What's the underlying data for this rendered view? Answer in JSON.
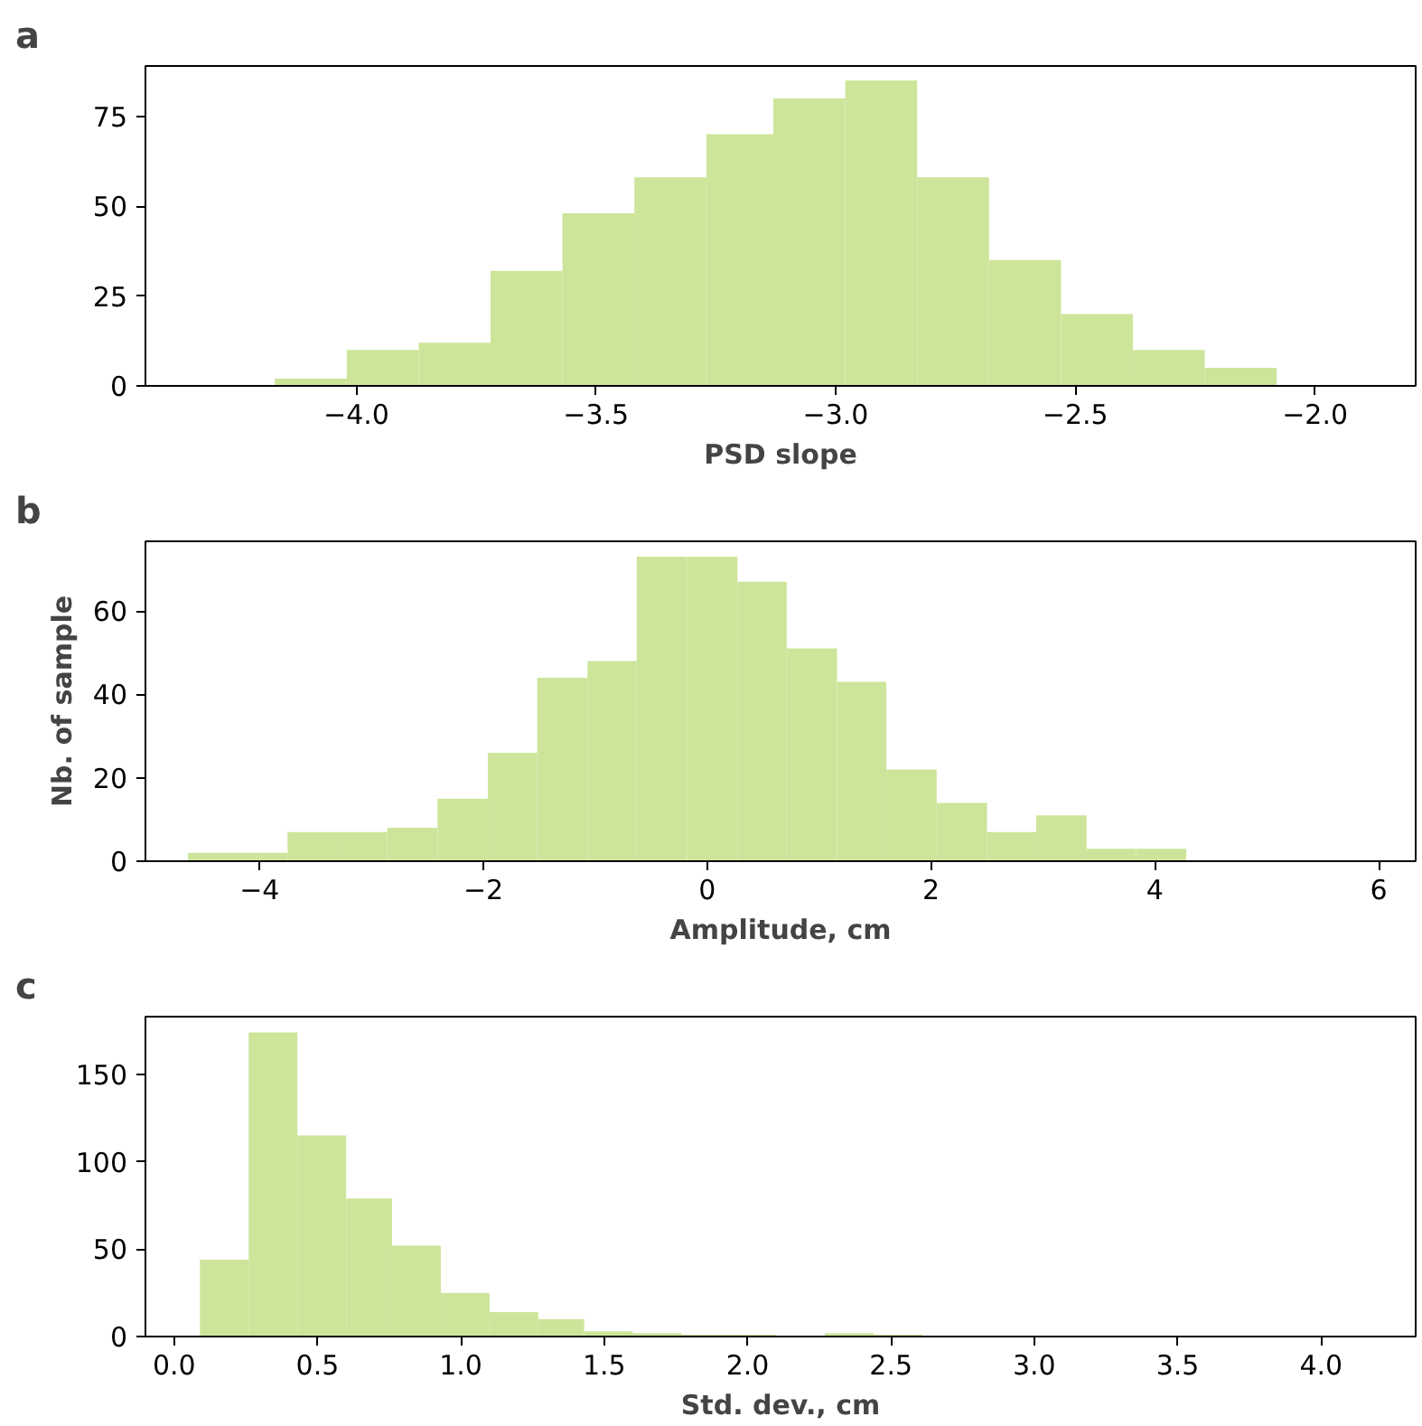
{
  "chart_data": [
    {
      "type": "histogram",
      "title": "a",
      "xlabel": "PSD slope",
      "color": "#cde59a",
      "grid": false,
      "bins": [
        -4.17,
        -4.02,
        -3.87,
        -3.72,
        -3.57,
        -3.42,
        -3.27,
        -3.13,
        -2.98,
        -2.83,
        -2.68,
        -2.53,
        -2.38,
        -2.23,
        -2.08
      ],
      "values": [
        2,
        10,
        12,
        32,
        48,
        58,
        70,
        80,
        85,
        58,
        35,
        20,
        10,
        5
      ],
      "xlim": [
        -4.44,
        -1.79
      ],
      "ylim": [
        0,
        89
      ],
      "xticks": [
        {
          "value": -4.0,
          "label": "−4.0"
        },
        {
          "value": -3.5,
          "label": "−3.5"
        },
        {
          "value": -3.0,
          "label": "−3.0"
        },
        {
          "value": -2.5,
          "label": "−2.5"
        },
        {
          "value": -2.0,
          "label": "−2.0"
        }
      ],
      "yticks": [
        0,
        25,
        50,
        75
      ]
    },
    {
      "type": "histogram",
      "title": "b",
      "xlabel": "Amplitude, cm",
      "ylabel": "Nb. of sample",
      "color": "#cde59a",
      "grid": false,
      "bins": [
        -4.64,
        -4.19,
        -3.75,
        -3.3,
        -2.86,
        -2.41,
        -1.96,
        -1.52,
        -1.07,
        -0.63,
        -0.18,
        0.27,
        0.71,
        1.16,
        1.6,
        2.05,
        2.5,
        2.94,
        3.39,
        3.83,
        4.28
      ],
      "values": [
        2,
        2,
        7,
        7,
        8,
        15,
        26,
        44,
        48,
        73,
        73,
        67,
        51,
        43,
        22,
        14,
        7,
        11,
        3,
        3
      ],
      "xlim": [
        -5.02,
        6.33
      ],
      "ylim": [
        0,
        76.7
      ],
      "xticks": [
        {
          "value": -4,
          "label": "−4"
        },
        {
          "value": -2,
          "label": "−2"
        },
        0,
        2,
        4,
        6
      ],
      "yticks": [
        0,
        20,
        40,
        60
      ]
    },
    {
      "type": "histogram",
      "title": "c",
      "xlabel": "Std. dev., cm",
      "color": "#cde59a",
      "grid": false,
      "bins": [
        0.09,
        0.26,
        0.43,
        0.6,
        0.76,
        0.93,
        1.1,
        1.27,
        1.43,
        1.6,
        1.77,
        1.94,
        2.1,
        2.27,
        2.44,
        2.61
      ],
      "values": [
        44,
        174,
        115,
        79,
        52,
        25,
        14,
        10,
        3,
        2,
        1,
        1,
        0,
        2,
        1
      ],
      "xlim": [
        -0.1,
        4.33
      ],
      "ylim": [
        0,
        183
      ],
      "xticks": [
        {
          "value": 0,
          "label": "0.0"
        },
        {
          "value": 0.5,
          "label": "0.5"
        },
        {
          "value": 1,
          "label": "1.0"
        },
        {
          "value": 1.5,
          "label": "1.5"
        },
        {
          "value": 2,
          "label": "2.0"
        },
        {
          "value": 2.5,
          "label": "2.5"
        },
        {
          "value": 3,
          "label": "3.0"
        },
        {
          "value": 3.5,
          "label": "3.5"
        },
        {
          "value": 4,
          "label": "4.0"
        }
      ],
      "yticks": [
        0,
        50,
        100,
        150
      ]
    }
  ]
}
